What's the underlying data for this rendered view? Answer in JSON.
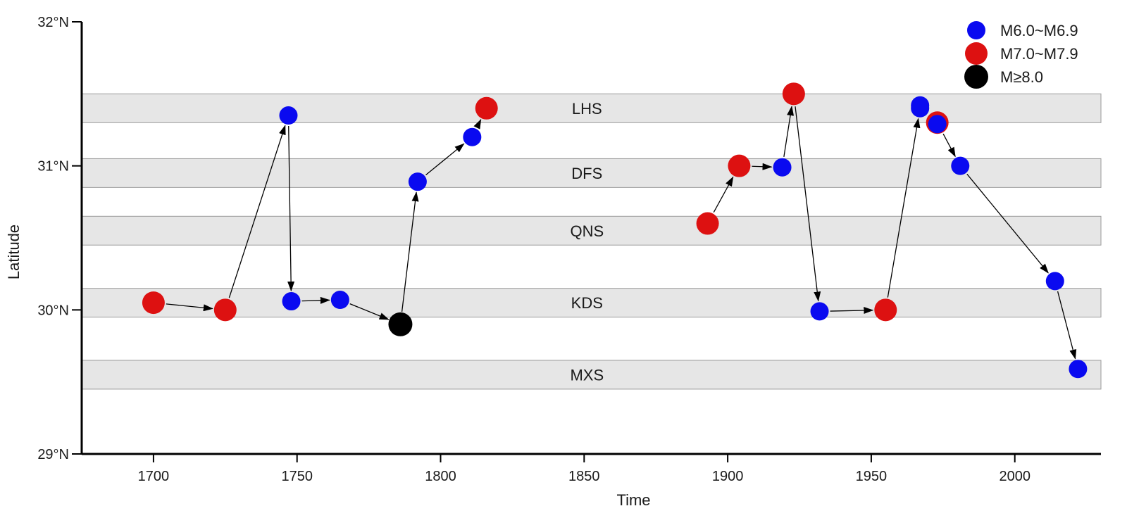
{
  "chart_data": {
    "type": "scatter",
    "title": "",
    "xlabel": "Time",
    "ylabel": "Latitude",
    "xlim": [
      1675,
      2030
    ],
    "ylim": [
      29,
      32
    ],
    "x_ticks": [
      1700,
      1750,
      1800,
      1850,
      1900,
      1950,
      2000
    ],
    "x_tick_labels": [
      "1700",
      "1750",
      "1800",
      "1850",
      "1900",
      "1950",
      "2000"
    ],
    "y_ticks": [
      29,
      30,
      31,
      32
    ],
    "y_tick_labels": [
      "29°N",
      "30°N",
      "31°N",
      "32°N"
    ],
    "grid": false,
    "legend_position": "top-right",
    "categories": [
      {
        "key": "m6",
        "label": "M6.0~M6.9",
        "color": "#0a0af0"
      },
      {
        "key": "m7",
        "label": "M7.0~M7.9",
        "color": "#dd1111"
      },
      {
        "key": "m8",
        "label": "M≥8.0",
        "color": "#000000"
      }
    ],
    "bands": [
      {
        "label": "LHS",
        "y_min": 31.3,
        "y_max": 31.5
      },
      {
        "label": "DFS",
        "y_min": 30.85,
        "y_max": 31.05
      },
      {
        "label": "QNS",
        "y_min": 30.45,
        "y_max": 30.65
      },
      {
        "label": "KDS",
        "y_min": 29.95,
        "y_max": 30.15
      },
      {
        "label": "MXS",
        "y_min": 29.45,
        "y_max": 29.65
      }
    ],
    "band_color": "#e6e6e6",
    "sequences": [
      [
        {
          "x": 1700,
          "y": 30.05,
          "cat": "m7"
        },
        {
          "x": 1725,
          "y": 30.0,
          "cat": "m7"
        },
        {
          "x": 1747,
          "y": 31.35,
          "cat": "m6"
        },
        {
          "x": 1748,
          "y": 30.06,
          "cat": "m6"
        },
        {
          "x": 1765,
          "y": 30.07,
          "cat": "m6"
        },
        {
          "x": 1786,
          "y": 29.9,
          "cat": "m8"
        },
        {
          "x": 1792,
          "y": 30.89,
          "cat": "m6"
        },
        {
          "x": 1811,
          "y": 31.2,
          "cat": "m6"
        },
        {
          "x": 1816,
          "y": 31.4,
          "cat": "m7"
        }
      ],
      [
        {
          "x": 1893,
          "y": 30.6,
          "cat": "m7"
        },
        {
          "x": 1904,
          "y": 31.0,
          "cat": "m7"
        },
        {
          "x": 1919,
          "y": 30.99,
          "cat": "m6"
        },
        {
          "x": 1923,
          "y": 31.5,
          "cat": "m7"
        },
        {
          "x": 1932,
          "y": 29.99,
          "cat": "m6"
        },
        {
          "x": 1955,
          "y": 30.0,
          "cat": "m7"
        },
        {
          "x": 1967,
          "y": 31.4,
          "cat": "m6"
        },
        {
          "x": 1973,
          "y": 31.3,
          "cat": "m7"
        },
        {
          "x": 1981,
          "y": 31.0,
          "cat": "m6"
        },
        {
          "x": 2014,
          "y": 30.2,
          "cat": "m6"
        },
        {
          "x": 2022,
          "y": 29.59,
          "cat": "m6"
        }
      ]
    ],
    "extra_points": [
      {
        "x": 1967,
        "y": 31.42,
        "cat": "m6"
      },
      {
        "x": 1973,
        "y": 31.29,
        "cat": "m6"
      }
    ]
  }
}
